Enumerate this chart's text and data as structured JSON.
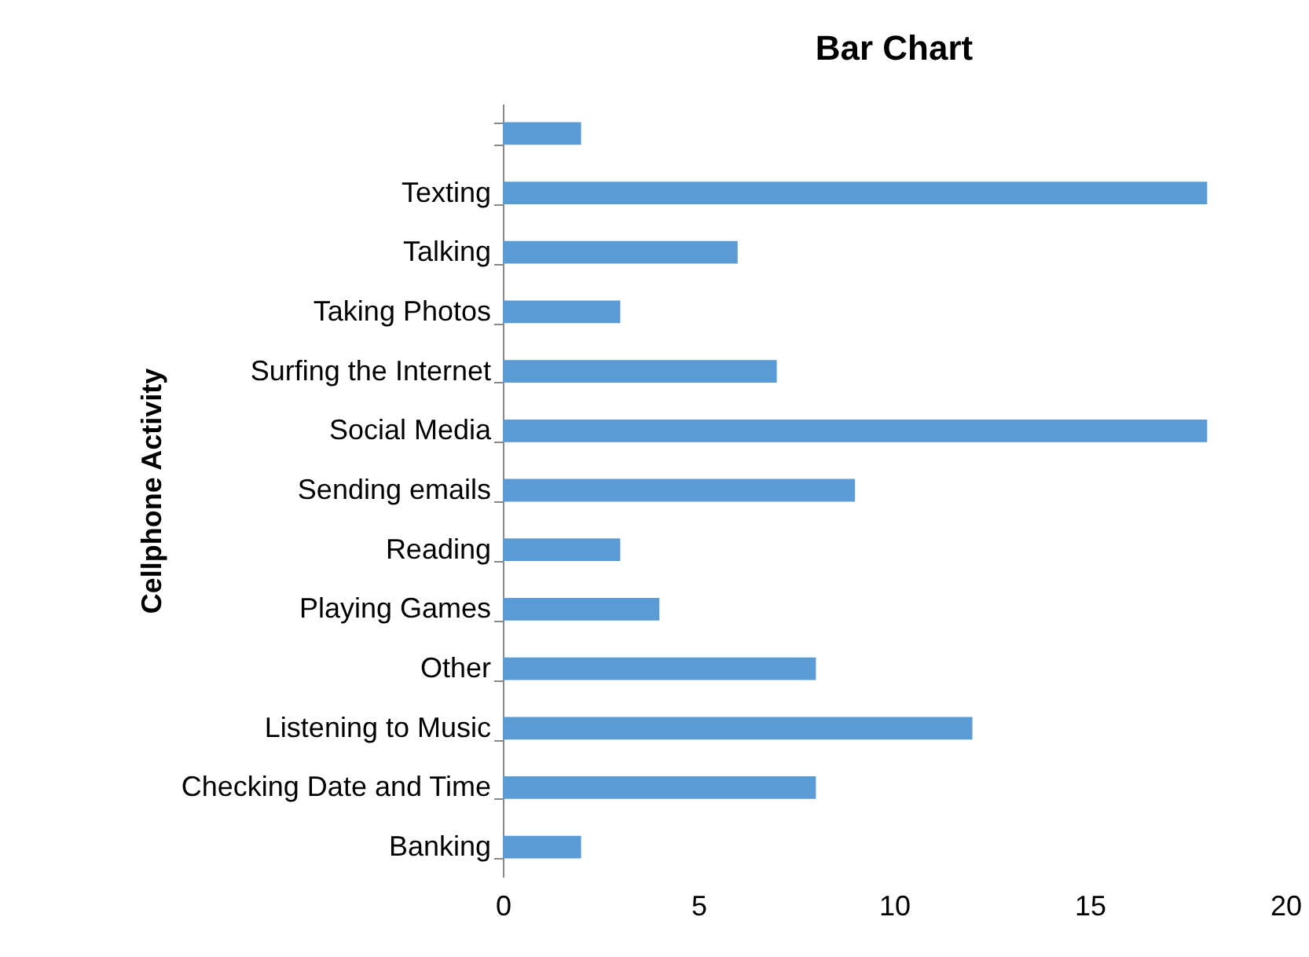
{
  "chart_data": {
    "type": "bar",
    "orientation": "horizontal",
    "title": "Bar Chart",
    "ylabel": "Cellphone Activity",
    "categories": [
      null,
      "Texting",
      "Talking",
      "Taking Photos",
      "Surfing the Internet",
      "Social Media",
      "Sending emails",
      "Reading",
      "Playing Games",
      "Other",
      "Listening to Music",
      "Checking Date and Time",
      "Banking"
    ],
    "values": [
      2,
      18,
      6,
      3,
      7,
      18,
      9,
      3,
      4,
      8,
      12,
      8,
      2
    ],
    "color": "#5b9bd5",
    "xlim": [
      0,
      20
    ],
    "xticks": [
      0,
      5,
      10,
      15,
      20
    ],
    "grid": false
  }
}
